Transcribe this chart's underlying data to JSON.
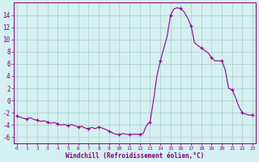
{
  "x": [
    0,
    0.33,
    0.66,
    1,
    1.33,
    1.66,
    2,
    2.33,
    2.66,
    3,
    3.33,
    3.66,
    4,
    4.33,
    4.66,
    5,
    5.33,
    5.66,
    6,
    6.33,
    6.66,
    7,
    7.33,
    7.66,
    8,
    8.33,
    8.66,
    9,
    9.33,
    9.66,
    10,
    10.33,
    10.66,
    11,
    11.33,
    11.66,
    12,
    12.33,
    12.66,
    13,
    13.33,
    13.66,
    14,
    14.33,
    14.66,
    15,
    15.33,
    15.66,
    16,
    16.33,
    16.66,
    17,
    17.33,
    17.66,
    18,
    18.33,
    18.66,
    19,
    19.33,
    19.66,
    20,
    20.33,
    20.66,
    21,
    21.33,
    21.66,
    22,
    22.33,
    22.66,
    23
  ],
  "y": [
    -2.5,
    -2.7,
    -2.9,
    -3.0,
    -2.8,
    -3.1,
    -3.2,
    -3.4,
    -3.3,
    -3.5,
    -3.7,
    -3.6,
    -3.8,
    -4.0,
    -3.9,
    -4.1,
    -3.9,
    -4.1,
    -4.3,
    -4.2,
    -4.5,
    -4.6,
    -4.4,
    -4.6,
    -4.3,
    -4.5,
    -4.7,
    -5.0,
    -5.3,
    -5.5,
    -5.6,
    -5.4,
    -5.5,
    -5.6,
    -5.5,
    -5.5,
    -5.5,
    -5.4,
    -4.0,
    -3.5,
    0.0,
    4.0,
    6.5,
    8.5,
    10.5,
    14.0,
    15.0,
    15.2,
    15.0,
    14.5,
    13.5,
    12.2,
    9.5,
    9.0,
    8.6,
    8.2,
    7.8,
    7.0,
    6.5,
    6.5,
    6.5,
    5.0,
    2.0,
    1.8,
    0.5,
    -1.0,
    -2.0,
    -2.2,
    -2.4,
    -2.3
  ],
  "hourly_x": [
    0,
    1,
    2,
    3,
    4,
    5,
    6,
    7,
    8,
    9,
    10,
    11,
    12,
    13,
    14,
    15,
    16,
    17,
    18,
    19,
    20,
    21,
    22,
    23
  ],
  "hourly_y": [
    -2.5,
    -3.0,
    -3.2,
    -3.5,
    -3.8,
    -4.1,
    -4.3,
    -4.6,
    -4.3,
    -5.0,
    -5.6,
    -5.6,
    -5.5,
    -3.5,
    6.5,
    14.0,
    15.2,
    12.2,
    8.6,
    7.0,
    6.5,
    1.8,
    -2.0,
    -2.3
  ],
  "line_color": "#990099",
  "marker_color": "#990099",
  "bg_color": "#d4f0f0",
  "grid_color": "#aacccc",
  "axis_color": "#800080",
  "tick_color": "#800080",
  "xlabel": "Windchill (Refroidissement éolien,°C)",
  "xlim": [
    -0.3,
    23.3
  ],
  "ylim": [
    -7,
    16
  ],
  "yticks": [
    -6,
    -4,
    -2,
    0,
    2,
    4,
    6,
    8,
    10,
    12,
    14
  ],
  "xticks": [
    0,
    1,
    2,
    3,
    4,
    5,
    6,
    7,
    8,
    9,
    10,
    11,
    12,
    13,
    14,
    15,
    16,
    17,
    18,
    19,
    20,
    21,
    22,
    23
  ]
}
